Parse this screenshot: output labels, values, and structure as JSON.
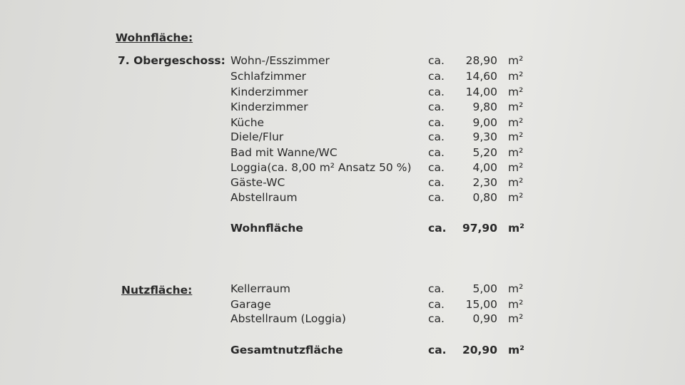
{
  "wohnflaeche": {
    "heading": "Wohnfläche:",
    "floor": "7. Obergeschoss:",
    "rows": [
      [
        "Wohn-/Esszimmer",
        "ca.",
        "28,90",
        "m²"
      ],
      [
        "Schlafzimmer",
        "ca.",
        "14,60",
        "m²"
      ],
      [
        "Kinderzimmer",
        "ca.",
        "14,00",
        "m²"
      ],
      [
        "Kinderzimmer",
        "ca.",
        "9,80",
        "m²"
      ],
      [
        "Küche",
        "ca.",
        "9,00",
        "m²"
      ],
      [
        "Diele/Flur",
        "ca.",
        "9,30",
        "m²"
      ],
      [
        "Bad mit Wanne/WC",
        "ca.",
        "5,20",
        "m²"
      ],
      [
        "Loggia(ca. 8,00 m² Ansatz 50 %)",
        "ca.",
        "4,00",
        "m²"
      ],
      [
        "Gäste-WC",
        "ca.",
        "2,30",
        "m²"
      ],
      [
        "Abstellraum",
        "ca.",
        "0,80",
        "m²"
      ]
    ],
    "total": [
      "Wohnfläche",
      "ca.",
      "97,90",
      "m²"
    ]
  },
  "nutzflaeche": {
    "heading": "Nutzfläche:",
    "rows": [
      [
        "Kellerraum",
        "ca.",
        "5,00",
        "m²"
      ],
      [
        "Garage",
        "ca.",
        "15,00",
        "m²"
      ],
      [
        "Abstellraum (Loggia)",
        "ca.",
        "0,90",
        "m²"
      ]
    ],
    "total": [
      "Gesamtnutzfläche",
      "ca.",
      "20,90",
      "m²"
    ]
  }
}
